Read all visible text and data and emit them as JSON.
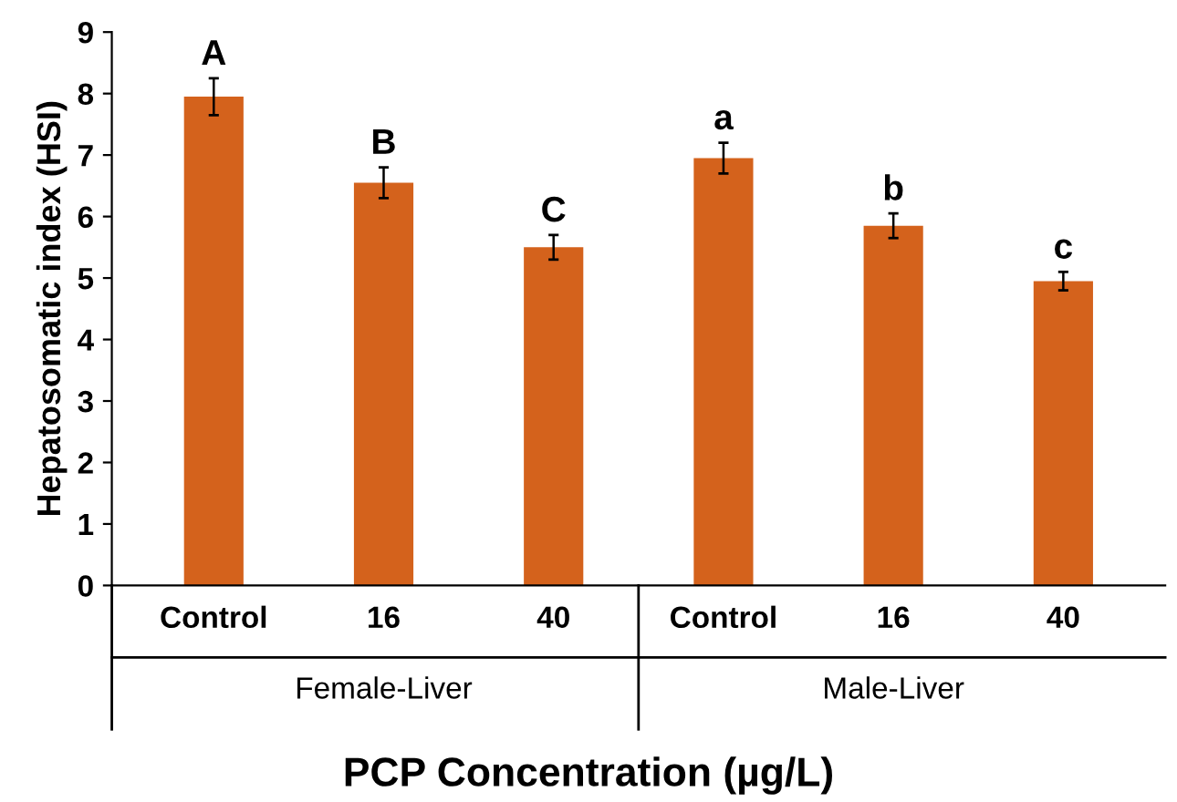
{
  "chart_data": {
    "type": "bar",
    "xlabel": "PCP Concentration (µg/L)",
    "ylabel": "Hepatosomatic index (HSI)",
    "categories": [
      "Control",
      "16",
      "40",
      "Control",
      "16",
      "40"
    ],
    "values": [
      7.95,
      6.55,
      5.5,
      6.95,
      5.85,
      4.95
    ],
    "errors": [
      0.3,
      0.25,
      0.2,
      0.25,
      0.2,
      0.15
    ],
    "color": "#d4621c",
    "ylim": [
      0,
      9
    ],
    "yticks": [
      0,
      1,
      2,
      3,
      4,
      5,
      6,
      7,
      8,
      9
    ],
    "grid": false,
    "annotations": [
      "A",
      "B",
      "C",
      "a",
      "b",
      "c",
      "Female-Liver",
      "Male-Liver"
    ]
  }
}
